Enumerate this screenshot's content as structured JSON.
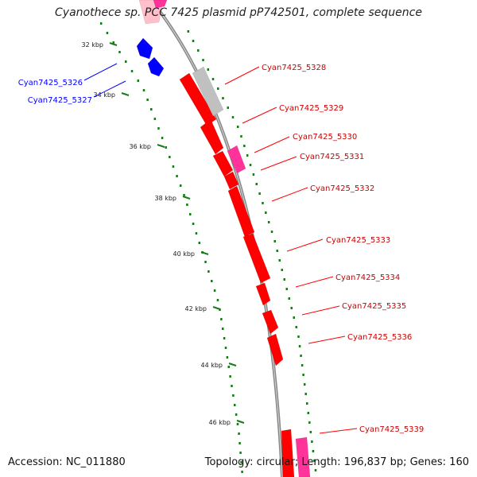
{
  "title": "Cyanothece sp. PCC 7425 plasmid pP742501, complete sequence",
  "footer": {
    "accession": "Accession: NC_011880",
    "summary": "Topology: circular; Length: 196,837 bp; Genes: 160"
  },
  "colors": {
    "forward_gene": "#ff0000",
    "reverse_gene": "#0000ff",
    "pseudo_gene": "#c0c0c0",
    "rna_gene": "#ff3399",
    "light_gene": "#ffc0cb",
    "backbone": "#888888",
    "tick": "#1a7a1a"
  },
  "tick_labels": [
    "32 kbp",
    "34 kbp",
    "36 kbp",
    "38 kbp",
    "40 kbp",
    "42 kbp",
    "44 kbp",
    "46 kbp"
  ],
  "gene_labels_left": [
    "Cyan7425_5326",
    "Cyan7425_5327"
  ],
  "gene_labels_right": [
    "Cyan7425_5328",
    "Cyan7425_5329",
    "Cyan7425_5330",
    "Cyan7425_5331",
    "Cyan7425_5332",
    "Cyan7425_5333",
    "Cyan7425_5334",
    "Cyan7425_5335",
    "Cyan7425_5336",
    "Cyan7425_5339"
  ]
}
